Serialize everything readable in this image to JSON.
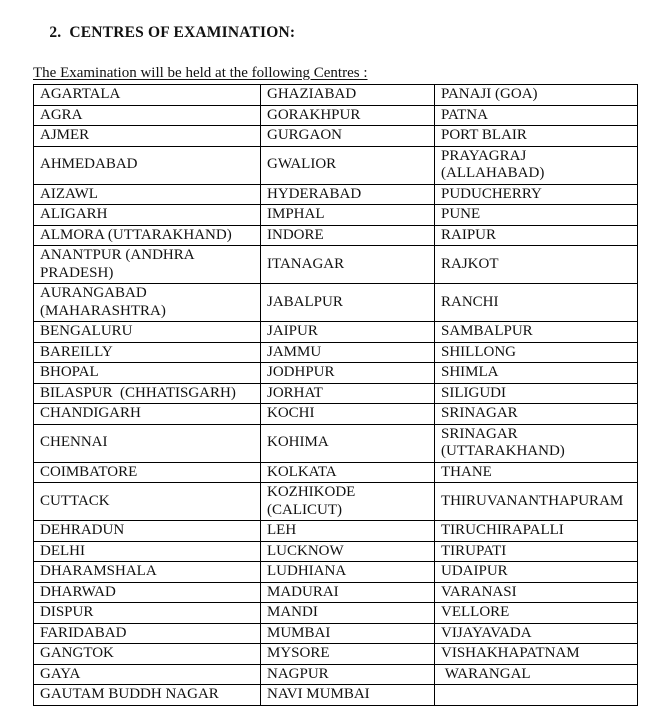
{
  "heading": {
    "number": "2.",
    "title": "CENTRES OF EXAMINATION:"
  },
  "intro": "The Examination will be held at the following Centres :",
  "table": {
    "rows": [
      [
        "AGARTALA",
        "GHAZIABAD",
        "PANAJI (GOA)"
      ],
      [
        "AGRA",
        "GORAKHPUR",
        "PATNA"
      ],
      [
        "AJMER",
        "GURGAON",
        "PORT BLAIR"
      ],
      [
        "AHMEDABAD",
        "GWALIOR",
        "PRAYAGRAJ (ALLAHABAD)"
      ],
      [
        "AIZAWL",
        "HYDERABAD",
        "PUDUCHERRY"
      ],
      [
        "ALIGARH",
        "IMPHAL",
        "PUNE"
      ],
      [
        "ALMORA (UTTARAKHAND)",
        "INDORE",
        "RAIPUR"
      ],
      [
        "ANANTPUR (ANDHRA PRADESH)",
        "ITANAGAR",
        "RAJKOT"
      ],
      [
        "AURANGABAD (MAHARASHTRA)",
        "JABALPUR",
        "RANCHI"
      ],
      [
        "BENGALURU",
        "JAIPUR",
        "SAMBALPUR"
      ],
      [
        "BAREILLY",
        "JAMMU",
        "SHILLONG"
      ],
      [
        "BHOPAL",
        "JODHPUR",
        "SHIMLA"
      ],
      [
        "BILASPUR  (CHHATISGARH)",
        "JORHAT",
        "SILIGUDI"
      ],
      [
        "CHANDIGARH",
        "KOCHI",
        "SRINAGAR"
      ],
      [
        "CHENNAI",
        "KOHIMA",
        "SRINAGAR (UTTARAKHAND)"
      ],
      [
        "COIMBATORE",
        "KOLKATA",
        "THANE"
      ],
      [
        "CUTTACK",
        "KOZHIKODE (CALICUT)",
        "THIRUVANANTHAPURAM"
      ],
      [
        "DEHRADUN",
        "LEH",
        "TIRUCHIRAPALLI"
      ],
      [
        "DELHI",
        "LUCKNOW",
        "TIRUPATI"
      ],
      [
        "DHARAMSHALA",
        "LUDHIANA",
        "UDAIPUR"
      ],
      [
        "DHARWAD",
        "MADURAI",
        "VARANASI"
      ],
      [
        "DISPUR",
        "MANDI",
        "VELLORE"
      ],
      [
        "FARIDABAD",
        "MUMBAI",
        "VIJAYAVADA"
      ],
      [
        "GANGTOK",
        "MYSORE",
        "VISHAKHAPATNAM"
      ],
      [
        "GAYA",
        "NAGPUR",
        " WARANGAL"
      ],
      [
        "GAUTAM BUDDH NAGAR",
        "NAVI MUMBAI",
        ""
      ]
    ]
  },
  "colors": {
    "text": "#111111",
    "border": "#000000",
    "background": "#ffffff"
  }
}
